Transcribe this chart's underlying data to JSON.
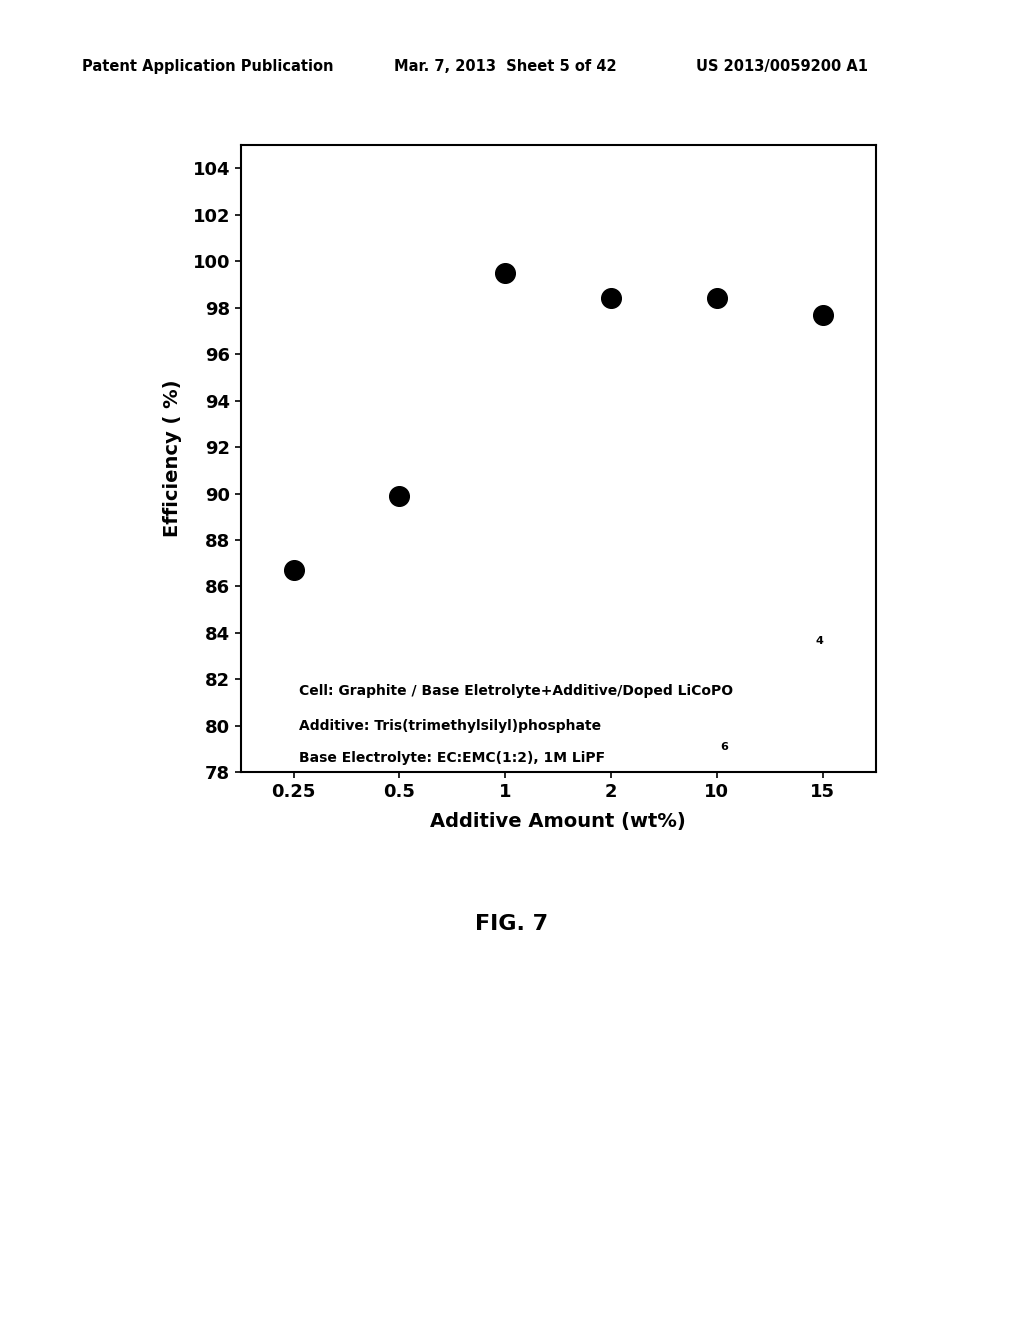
{
  "x_values": [
    0.25,
    0.5,
    1,
    2,
    10,
    15
  ],
  "y_values": [
    86.7,
    89.9,
    99.5,
    98.4,
    98.4,
    97.7
  ],
  "x_tick_labels": [
    "0.25",
    "0.5",
    "1",
    "2",
    "10",
    "15"
  ],
  "y_ticks": [
    78,
    80,
    82,
    84,
    86,
    88,
    90,
    92,
    94,
    96,
    98,
    100,
    102,
    104
  ],
  "ylim": [
    78,
    105
  ],
  "xlabel": "Additive Amount (wt%)",
  "ylabel": "Efficiency ( %)",
  "annotation_line1": "Cell: Graphite / Base Eletrolyte+Additive/Doped LiCoPO",
  "annotation_sub1": "4",
  "annotation_line2": "Additive: Tris(trimethylsilyl)phosphate",
  "annotation_line3": "Base Electrolyte: EC:EMC(1:2), 1M LiPF",
  "annotation_sub3": "6",
  "fig_caption": "FIG. 7",
  "patent_header": "Patent Application Publication",
  "patent_date": "Mar. 7, 2013  Sheet 5 of 42",
  "patent_number": "US 2013/0059200 A1",
  "marker_color": "#000000",
  "marker_size": 200,
  "background_color": "#ffffff"
}
